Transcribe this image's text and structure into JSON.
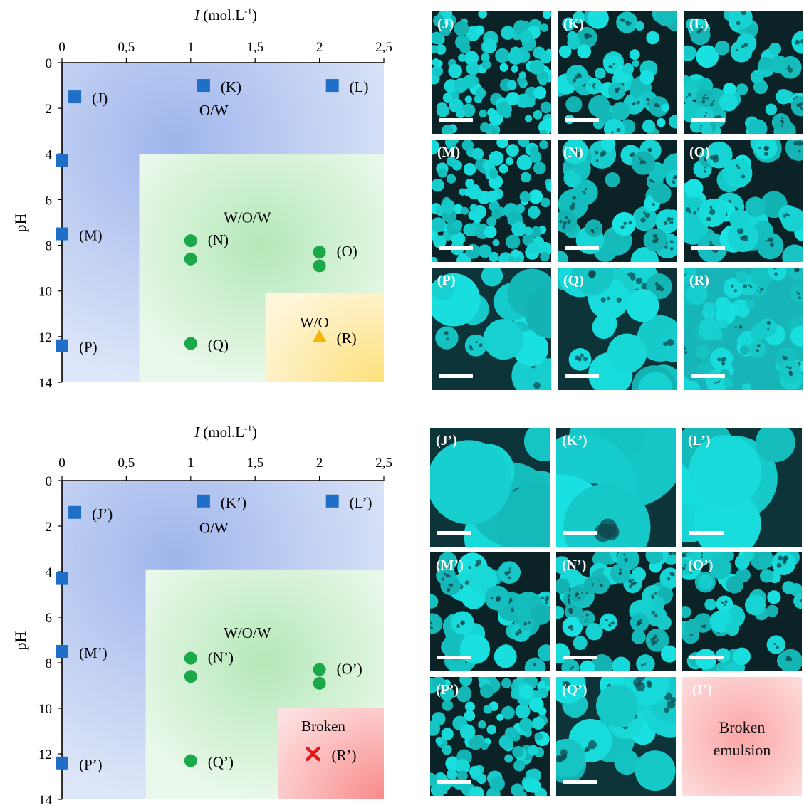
{
  "chart_data": [
    {
      "type": "scatter",
      "xlabel": "I (mol.L-1)",
      "xlabel_italic": "I",
      "xlabel_rest": " (mol.L",
      "xlabel_sup": "-1",
      "xlabel_close": ")",
      "ylabel": "pH",
      "xlim": [
        0,
        2.5
      ],
      "ylim": [
        0,
        14
      ],
      "y_inverted": true,
      "x_axis_position": "top",
      "xticks": [
        "0",
        "0,5",
        "1",
        "1,5",
        "2",
        "2,5"
      ],
      "xtick_values": [
        0,
        0.5,
        1,
        1.5,
        2,
        2.5
      ],
      "yticks": [
        "0",
        "2",
        "4",
        "6",
        "8",
        "10",
        "12",
        "14"
      ],
      "ytick_values": [
        0,
        2,
        4,
        6,
        8,
        10,
        12,
        14
      ],
      "grid": false,
      "regions": [
        {
          "label": "O/W",
          "color": "#b4c6ee",
          "x_range": [
            0,
            2.5
          ],
          "y_range": [
            0,
            14
          ],
          "label_at": [
            1.18,
            2.3
          ]
        },
        {
          "label": "W/O/W",
          "color": "#d3efd3",
          "x_range": [
            0.6,
            2.5
          ],
          "y_range": [
            4,
            14
          ],
          "label_at": [
            1.44,
            7.0
          ]
        },
        {
          "label": "W/O",
          "color": "#fde9a8",
          "x_range": [
            1.58,
            2.5
          ],
          "y_range": [
            10.1,
            14
          ],
          "label_at": [
            1.96,
            11.6
          ]
        }
      ],
      "series": [
        {
          "marker": "square",
          "color": "#1f6fc8",
          "points": [
            {
              "x": 0.1,
              "y": 1.5,
              "label": "(J)"
            },
            {
              "x": 0.0,
              "y": 4.3,
              "label": ""
            },
            {
              "x": 1.1,
              "y": 1.0,
              "label": "(K)"
            },
            {
              "x": 2.1,
              "y": 1.0,
              "label": "(L)"
            },
            {
              "x": 0.0,
              "y": 7.5,
              "label": "(M)"
            },
            {
              "x": 0.0,
              "y": 12.4,
              "label": "(P)"
            }
          ]
        },
        {
          "marker": "circle",
          "color": "#1aa84a",
          "points": [
            {
              "x": 1.0,
              "y": 7.8,
              "label": "(N)"
            },
            {
              "x": 1.0,
              "y": 8.6,
              "label": ""
            },
            {
              "x": 2.0,
              "y": 8.3,
              "label": "(O)"
            },
            {
              "x": 2.0,
              "y": 8.9,
              "label": ""
            },
            {
              "x": 1.0,
              "y": 12.3,
              "label": "(Q)"
            }
          ]
        },
        {
          "marker": "triangle",
          "color": "#f5b400",
          "points": [
            {
              "x": 2.0,
              "y": 12.0,
              "label": "(R)"
            }
          ]
        }
      ]
    },
    {
      "type": "scatter",
      "xlabel": "I (mol.L-1)",
      "xlabel_italic": "I",
      "xlabel_rest": " (mol.L",
      "xlabel_sup": "-1",
      "xlabel_close": ")",
      "ylabel": "pH",
      "xlim": [
        0,
        2.5
      ],
      "ylim": [
        0,
        14
      ],
      "y_inverted": true,
      "x_axis_position": "top",
      "xticks": [
        "0",
        "0,5",
        "1",
        "1,5",
        "2",
        "2,5"
      ],
      "xtick_values": [
        0,
        0.5,
        1,
        1.5,
        2,
        2.5
      ],
      "yticks": [
        "0",
        "2",
        "4",
        "6",
        "8",
        "10",
        "12",
        "14"
      ],
      "ytick_values": [
        0,
        2,
        4,
        6,
        8,
        10,
        12,
        14
      ],
      "grid": false,
      "regions": [
        {
          "label": "O/W",
          "color": "#b4c6ee",
          "x_range": [
            0,
            2.5
          ],
          "y_range": [
            0,
            14
          ],
          "label_at": [
            1.18,
            2.3
          ]
        },
        {
          "label": "W/O/W",
          "color": "#d3efd3",
          "x_range": [
            0.65,
            2.5
          ],
          "y_range": [
            3.9,
            14
          ],
          "label_at": [
            1.44,
            6.9
          ]
        },
        {
          "label": "Broken",
          "color": "#fbb3b3",
          "x_range": [
            1.68,
            2.5
          ],
          "y_range": [
            10.0,
            14
          ],
          "label_at": [
            2.03,
            11.0
          ]
        }
      ],
      "series": [
        {
          "marker": "square",
          "color": "#1f6fc8",
          "points": [
            {
              "x": 0.1,
              "y": 1.4,
              "label": "(J’)"
            },
            {
              "x": 0.0,
              "y": 4.3,
              "label": ""
            },
            {
              "x": 1.1,
              "y": 0.9,
              "label": "(K’)"
            },
            {
              "x": 2.1,
              "y": 0.9,
              "label": "(L’)"
            },
            {
              "x": 0.0,
              "y": 7.5,
              "label": "(M’)"
            },
            {
              "x": 0.0,
              "y": 12.4,
              "label": "(P’)"
            }
          ]
        },
        {
          "marker": "circle",
          "color": "#1aa84a",
          "points": [
            {
              "x": 1.0,
              "y": 7.8,
              "label": "(N’)"
            },
            {
              "x": 1.0,
              "y": 8.6,
              "label": ""
            },
            {
              "x": 2.0,
              "y": 8.3,
              "label": "(O’)"
            },
            {
              "x": 2.0,
              "y": 8.9,
              "label": ""
            },
            {
              "x": 1.0,
              "y": 12.3,
              "label": "(Q’)"
            }
          ]
        },
        {
          "marker": "cross",
          "color": "#e01b1b",
          "points": [
            {
              "x": 1.95,
              "y": 12.0,
              "label": "(R’)"
            }
          ]
        }
      ]
    }
  ],
  "micrographs": [
    {
      "panels": [
        {
          "label": "(J)",
          "size": "tiny"
        },
        {
          "label": "(K)",
          "size": "mixed"
        },
        {
          "label": "(L)",
          "size": "small"
        },
        {
          "label": "(M)",
          "size": "tiny"
        },
        {
          "label": "(N)",
          "size": "medium"
        },
        {
          "label": "(O)",
          "size": "medium"
        },
        {
          "label": "(P)",
          "size": "large"
        },
        {
          "label": "(Q)",
          "size": "large"
        },
        {
          "label": "(R)",
          "size": "dense"
        }
      ]
    },
    {
      "panels": [
        {
          "label": "(J’)",
          "size": "huge"
        },
        {
          "label": "(K’)",
          "size": "giant"
        },
        {
          "label": "(L’)",
          "size": "huge"
        },
        {
          "label": "(M’)",
          "size": "medium"
        },
        {
          "label": "(N’)",
          "size": "small"
        },
        {
          "label": "(O’)",
          "size": "small"
        },
        {
          "label": "(P’)",
          "size": "tiny"
        },
        {
          "label": "(Q’)",
          "size": "large"
        },
        {
          "label": "(I’)",
          "size": "broken",
          "text_lines": [
            "Broken",
            "emulsion"
          ]
        }
      ]
    }
  ],
  "colors": {
    "cyan": "#19e3e3",
    "dark_bg": "#0b2226",
    "scale_bar": "#ffffff",
    "broken_panel": "#fca5a5"
  }
}
